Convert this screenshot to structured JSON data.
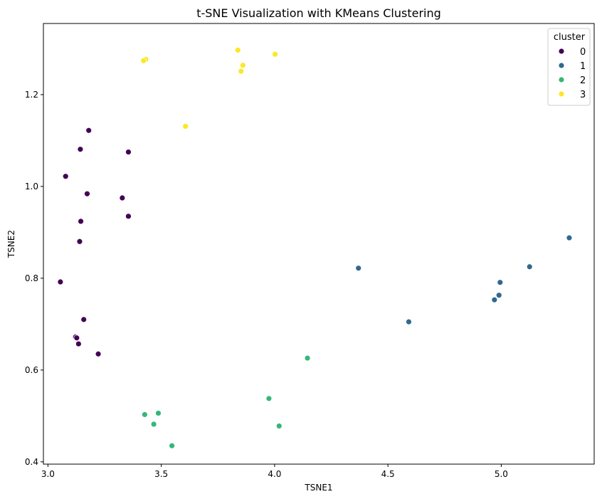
{
  "chart_data": {
    "type": "scatter",
    "title": "t-SNE Visualization with KMeans Clustering",
    "xlabel": "TSNE1",
    "ylabel": "TSNE2",
    "xlim": [
      2.98,
      5.41
    ],
    "ylim": [
      0.395,
      1.355
    ],
    "xticks": [
      "3.0",
      "3.5",
      "4.0",
      "4.5",
      "5.0"
    ],
    "xtick_values": [
      3.0,
      3.5,
      4.0,
      4.5,
      5.0
    ],
    "yticks": [
      "0.4",
      "0.6",
      "0.8",
      "1.0",
      "1.2"
    ],
    "ytick_values": [
      0.4,
      0.6,
      0.8,
      1.0,
      1.2
    ],
    "grid": false,
    "legend": {
      "title": "cluster",
      "placement": "top-right"
    },
    "series": [
      {
        "name": "0",
        "color": "#440154",
        "points": [
          [
            3.18,
            1.122
          ],
          [
            3.143,
            1.081
          ],
          [
            3.355,
            1.075
          ],
          [
            3.078,
            1.022
          ],
          [
            3.173,
            0.984
          ],
          [
            3.328,
            0.975
          ],
          [
            3.355,
            0.935
          ],
          [
            3.145,
            0.924
          ],
          [
            3.14,
            0.88
          ],
          [
            3.055,
            0.792
          ],
          [
            3.158,
            0.71
          ],
          [
            3.122,
            0.672
          ],
          [
            3.127,
            0.67
          ],
          [
            3.135,
            0.657
          ],
          [
            3.222,
            0.635
          ]
        ]
      },
      {
        "name": "1",
        "color": "#31688e",
        "points": [
          [
            5.3,
            0.888
          ],
          [
            4.37,
            0.822
          ],
          [
            5.125,
            0.825
          ],
          [
            4.995,
            0.791
          ],
          [
            4.99,
            0.763
          ],
          [
            4.97,
            0.753
          ],
          [
            4.592,
            0.705
          ]
        ]
      },
      {
        "name": "2",
        "color": "#35b779",
        "points": [
          [
            4.145,
            0.626
          ],
          [
            3.975,
            0.538
          ],
          [
            3.487,
            0.506
          ],
          [
            3.427,
            0.503
          ],
          [
            3.467,
            0.482
          ],
          [
            4.02,
            0.478
          ],
          [
            3.547,
            0.435
          ]
        ]
      },
      {
        "name": "3",
        "color": "#fde725",
        "points": [
          [
            3.838,
            1.297
          ],
          [
            4.002,
            1.288
          ],
          [
            3.432,
            1.277
          ],
          [
            3.422,
            1.274
          ],
          [
            3.86,
            1.264
          ],
          [
            3.852,
            1.251
          ],
          [
            3.607,
            1.131
          ]
        ]
      }
    ]
  }
}
